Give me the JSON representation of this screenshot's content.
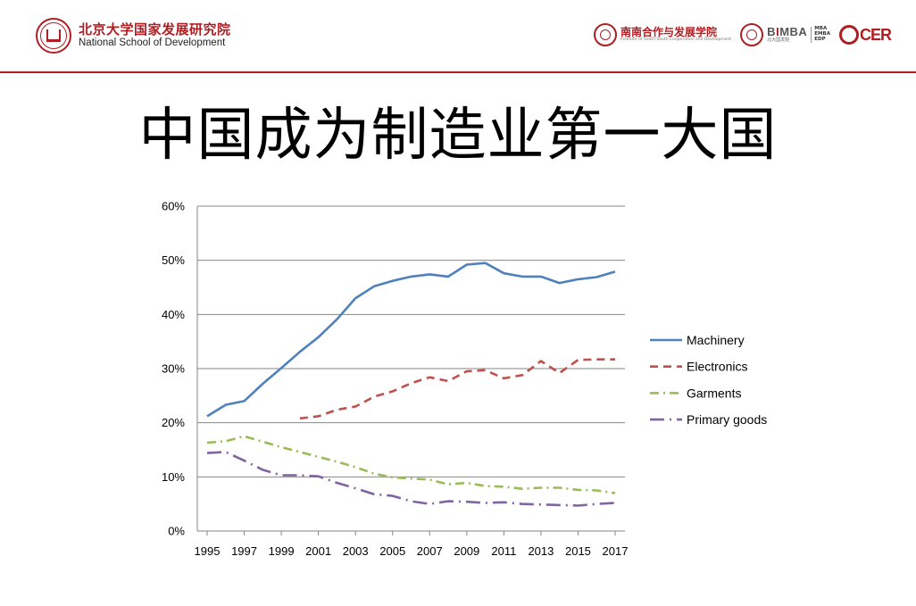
{
  "header": {
    "school_cn": "北京大学国家发展研究院",
    "school_en": "National School of Development",
    "partner_cn": "南南合作与发展学院",
    "partner_en": "Institute of South-South Cooperation and Development",
    "bimba_prefix": "B",
    "bimba_accent": "I",
    "bimba_suffix": "MBA",
    "bimba_cn": "北大国发院",
    "bimba_tag_1": "MBA",
    "bimba_tag_2": "EMBA",
    "bimba_tag_3": "EDP",
    "ccer_label": "CER",
    "accent_color": "#b01e23"
  },
  "slide": {
    "title": "中国成为制造业第一大国"
  },
  "chart_data": {
    "type": "line",
    "title": "",
    "xlabel": "",
    "ylabel": "",
    "x": [
      1995,
      1996,
      1997,
      1998,
      1999,
      2000,
      2001,
      2002,
      2003,
      2004,
      2005,
      2006,
      2007,
      2008,
      2009,
      2010,
      2011,
      2012,
      2013,
      2014,
      2015,
      2016,
      2017
    ],
    "x_tick_labels": [
      "1995",
      "1997",
      "1999",
      "2001",
      "2003",
      "2005",
      "2007",
      "2009",
      "2011",
      "2013",
      "2015",
      "2017"
    ],
    "y_tick_labels": [
      "0%",
      "10%",
      "20%",
      "30%",
      "40%",
      "50%",
      "60%"
    ],
    "ylim": [
      0,
      60
    ],
    "y_unit": "%",
    "grid": "horizontal",
    "legend_position": "right",
    "series": [
      {
        "name": "Machinery",
        "color": "#4f81bd",
        "dash": "solid",
        "values": [
          21.2,
          23.3,
          24.0,
          27.2,
          30.1,
          33.1,
          35.8,
          39.1,
          43.0,
          45.2,
          46.2,
          47.0,
          47.4,
          47.0,
          49.2,
          49.5,
          47.6,
          47.0,
          47.0,
          45.8,
          46.5,
          46.9,
          47.9
        ]
      },
      {
        "name": "Electronics",
        "color": "#c0504d",
        "dash": "dashed",
        "values": [
          null,
          null,
          null,
          null,
          null,
          20.8,
          21.2,
          22.4,
          23.0,
          24.8,
          25.8,
          27.3,
          28.4,
          27.7,
          29.5,
          29.7,
          28.2,
          28.8,
          31.4,
          29.2,
          31.6,
          31.7,
          31.7
        ]
      },
      {
        "name": "Garments",
        "color": "#9bbb59",
        "dash": "dash-dot",
        "values": [
          16.3,
          16.6,
          17.5,
          16.5,
          15.5,
          14.6,
          13.7,
          12.8,
          11.8,
          10.6,
          9.9,
          9.7,
          9.5,
          8.6,
          8.9,
          8.3,
          8.2,
          7.8,
          8.0,
          8.0,
          7.6,
          7.5,
          7.0
        ]
      },
      {
        "name": "Primary goods",
        "color": "#8064a2",
        "dash": "long-dash-dot",
        "values": [
          14.4,
          14.6,
          13.0,
          11.3,
          10.3,
          10.3,
          10.1,
          8.9,
          7.9,
          6.8,
          6.5,
          5.5,
          5.0,
          5.5,
          5.4,
          5.2,
          5.3,
          5.0,
          4.9,
          4.8,
          4.7,
          5.0,
          5.2
        ]
      }
    ]
  }
}
